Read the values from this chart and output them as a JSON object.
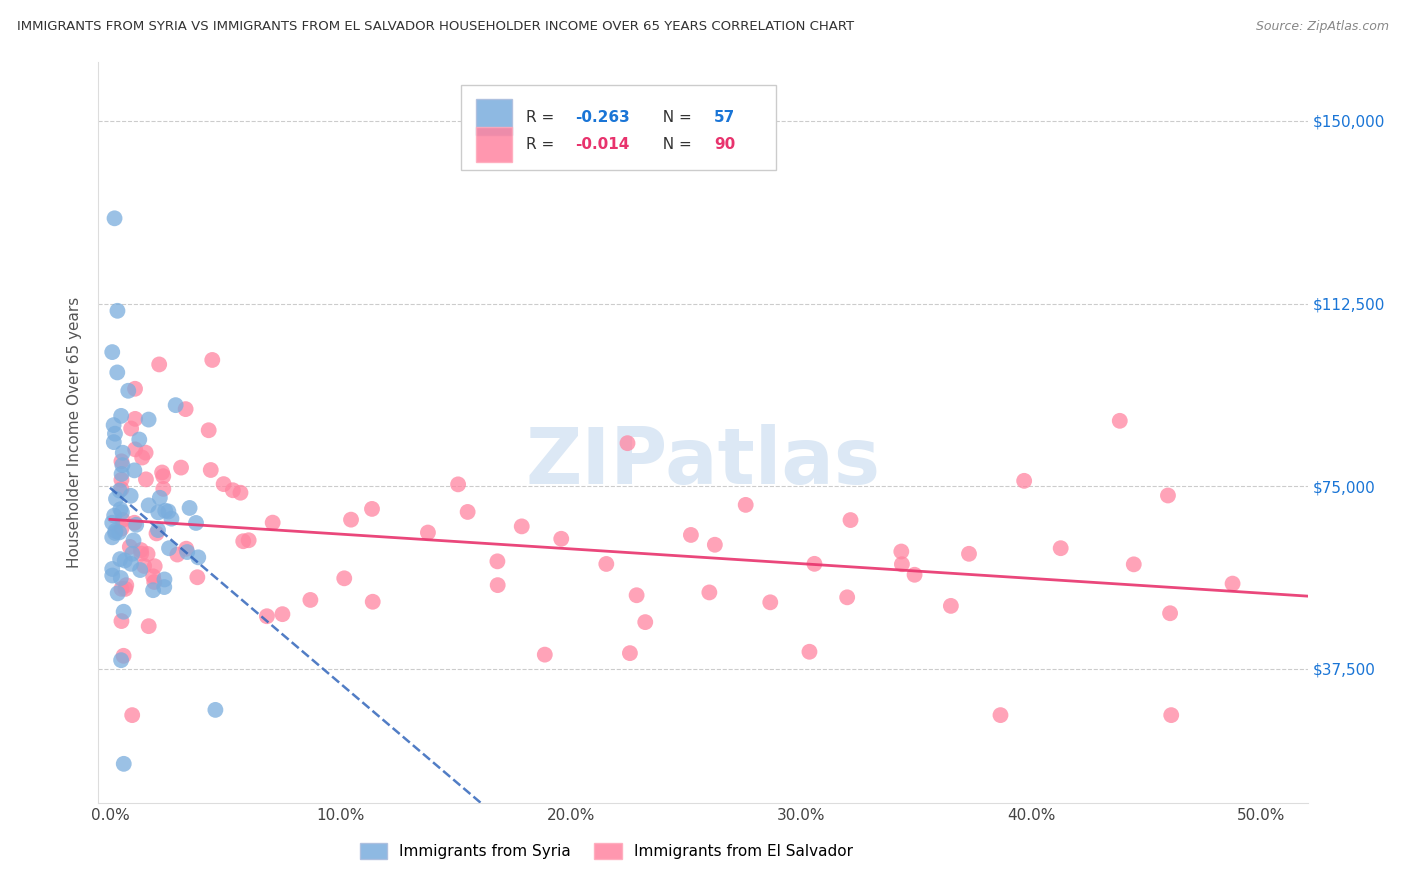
{
  "title": "IMMIGRANTS FROM SYRIA VS IMMIGRANTS FROM EL SALVADOR HOUSEHOLDER INCOME OVER 65 YEARS CORRELATION CHART",
  "source": "Source: ZipAtlas.com",
  "ylabel": "Householder Income Over 65 years",
  "x_tick_labels": [
    "0.0%",
    "10.0%",
    "20.0%",
    "30.0%",
    "40.0%",
    "50.0%"
  ],
  "x_tick_positions": [
    0.0,
    0.1,
    0.2,
    0.3,
    0.4,
    0.5
  ],
  "y_tick_labels": [
    "$37,500",
    "$75,000",
    "$112,500",
    "$150,000"
  ],
  "y_tick_positions": [
    37500,
    75000,
    112500,
    150000
  ],
  "xlim": [
    -0.005,
    0.52
  ],
  "ylim": [
    10000,
    162000
  ],
  "syria_color": "#7aaddd",
  "salvador_color": "#ff85a1",
  "syria_line_color": "#3366bb",
  "salvador_line_color": "#e8336d",
  "watermark_color": "#dce8f5",
  "legend_box_color": "#f5f5f5",
  "legend_border_color": "#cccccc",
  "grid_color": "#cccccc",
  "title_color": "#333333",
  "source_color": "#888888",
  "right_tick_color": "#1a75d6",
  "ylabel_color": "#555555",
  "syria_R": -0.263,
  "syria_N": 57,
  "salvador_R": -0.014,
  "salvador_N": 90
}
